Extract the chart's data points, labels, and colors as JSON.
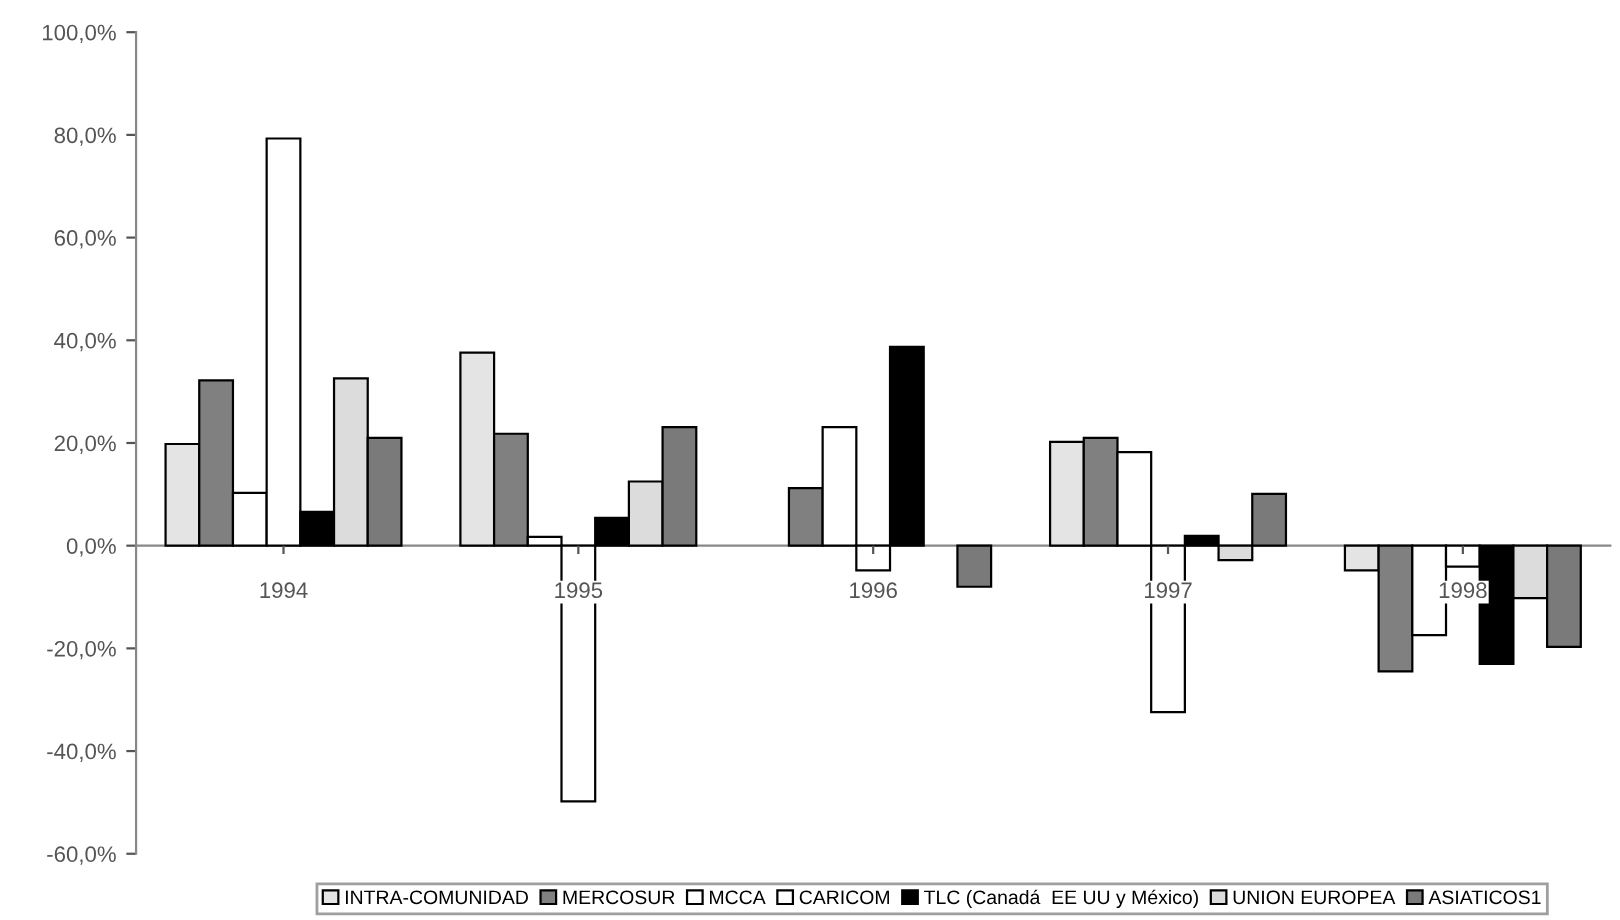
{
  "chart_data": {
    "type": "bar",
    "categories": [
      "1994",
      "1995",
      "1996",
      "1997",
      "1998"
    ],
    "series": [
      {
        "name": "INTRA-COMUNIDAD",
        "color": "#e4e4e4",
        "values": [
          19.8,
          37.6,
          null,
          20.2,
          -4.8
        ]
      },
      {
        "name": "MERCOSUR",
        "color": "#808080",
        "values": [
          32.2,
          21.8,
          11.2,
          21.0,
          -24.5
        ]
      },
      {
        "name": "MCCA",
        "color": "#ffffff",
        "values": [
          10.3,
          1.7,
          23.1,
          18.2,
          -17.4
        ]
      },
      {
        "name": "CARICOM",
        "color": "#ffffff",
        "values": [
          79.3,
          -49.8,
          -4.8,
          -32.4,
          -4.1
        ]
      },
      {
        "name": "TLC (Canadá  EE UU y México)",
        "color": "#000000",
        "values": [
          6.6,
          5.4,
          38.7,
          1.9,
          -23.0
        ]
      },
      {
        "name": "UNION EUROPEA",
        "color": "#dcdcdc",
        "values": [
          32.6,
          12.5,
          null,
          -2.8,
          -10.2
        ]
      },
      {
        "name": "ASIATICOS1",
        "color": "#7a7a7a",
        "values": [
          21.0,
          23.1,
          -8.0,
          10.1,
          -19.7
        ]
      }
    ],
    "ylim": [
      -60,
      100
    ],
    "yticks": [
      {
        "value": -60,
        "label": "-60,0%"
      },
      {
        "value": -40,
        "label": "-40,0%"
      },
      {
        "value": -20,
        "label": "-20,0%"
      },
      {
        "value": 0,
        "label": "0,0%"
      },
      {
        "value": 20,
        "label": "20,0%"
      },
      {
        "value": 40,
        "label": "40,0%"
      },
      {
        "value": 60,
        "label": "60,0%"
      },
      {
        "value": 80,
        "label": "80,0%"
      },
      {
        "value": 100,
        "label": "100,0%"
      }
    ],
    "grid": false,
    "legend": "bottom"
  }
}
